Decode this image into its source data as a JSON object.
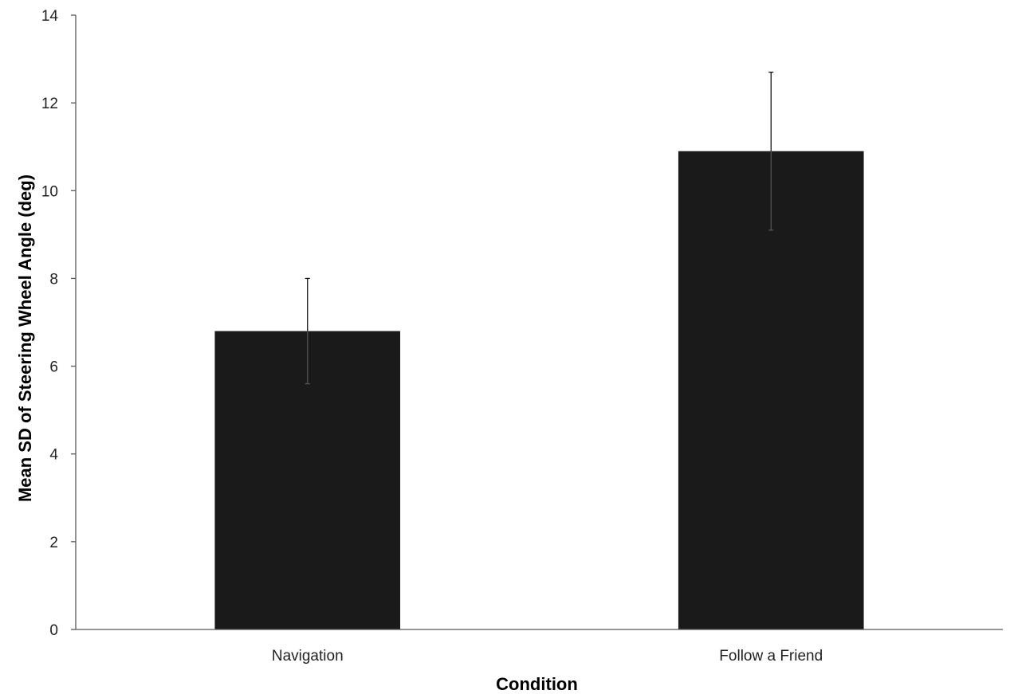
{
  "chart_data": {
    "type": "bar",
    "title": "",
    "categories": [
      "Navigation",
      "Follow a Friend"
    ],
    "values": [
      6.8,
      10.9
    ],
    "error_bars": [
      {
        "lower": 5.6,
        "upper": 8.0
      },
      {
        "lower": 9.1,
        "upper": 12.7
      }
    ],
    "xlabel": "Condition",
    "ylabel": "Mean SD of Steering Wheel Angle (deg)",
    "ylim": [
      0,
      14
    ],
    "yticks": [
      0,
      2,
      4,
      6,
      8,
      10,
      12,
      14
    ],
    "grid": false,
    "legend": "none",
    "bar_color": "#1a1a1a",
    "axis_color": "#595959"
  }
}
